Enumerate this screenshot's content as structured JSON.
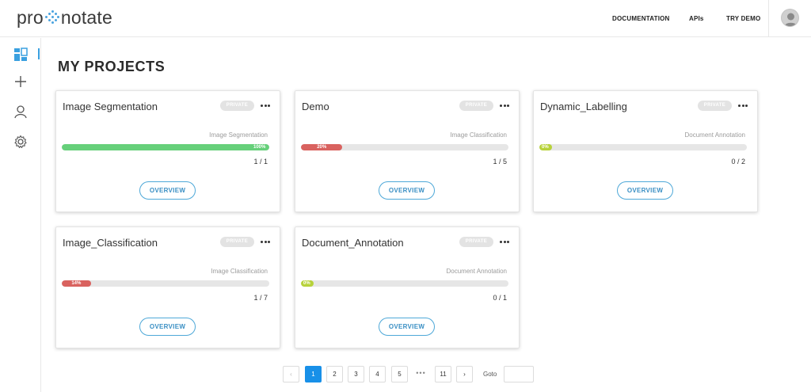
{
  "header": {
    "logo_left": "pro",
    "logo_right": "notate",
    "nav": [
      {
        "label": "DOCUMENTATION"
      },
      {
        "label": "APIs"
      },
      {
        "label": "TRY DEMO"
      }
    ],
    "avatar_icon": "user-avatar-icon"
  },
  "sidebar": {
    "items": [
      {
        "icon": "dashboard-icon",
        "active": true
      },
      {
        "icon": "plus-icon",
        "active": false
      },
      {
        "icon": "user-icon",
        "active": false
      },
      {
        "icon": "gear-icon",
        "active": false
      }
    ]
  },
  "main": {
    "title": "MY PROJECTS",
    "projects": [
      {
        "name": "Image Segmentation",
        "visibility": "PRIVATE",
        "type": "Image Segmentation",
        "progress": 100,
        "progress_label": "100%",
        "count": "1 / 1",
        "color": "#66d07a",
        "button": "OVERVIEW"
      },
      {
        "name": "Demo",
        "visibility": "PRIVATE",
        "type": "Image Classification",
        "progress": 20,
        "progress_label": "20%",
        "count": "1 / 5",
        "color": "#d9625f",
        "button": "OVERVIEW"
      },
      {
        "name": "Dynamic_Labelling",
        "visibility": "PRIVATE",
        "type": "Document Annotation",
        "progress": 0,
        "progress_label": "0%",
        "count": "0 / 2",
        "color": "#b7d23a",
        "button": "OVERVIEW"
      },
      {
        "name": "Image_Classification",
        "visibility": "PRIVATE",
        "type": "Image Classification",
        "progress": 14,
        "progress_label": "14%",
        "count": "1 / 7",
        "color": "#d9625f",
        "button": "OVERVIEW"
      },
      {
        "name": "Document_Annotation",
        "visibility": "PRIVATE",
        "type": "Document Annotation",
        "progress": 0,
        "progress_label": "0%",
        "count": "0 / 1",
        "color": "#b7d23a",
        "button": "OVERVIEW"
      }
    ]
  },
  "pagination": {
    "prev": "‹",
    "next": "›",
    "pages": [
      "1",
      "2",
      "3",
      "4",
      "5"
    ],
    "ellipsis": "•••",
    "last": "11",
    "current": "1",
    "goto_label": "Goto",
    "goto_value": ""
  }
}
